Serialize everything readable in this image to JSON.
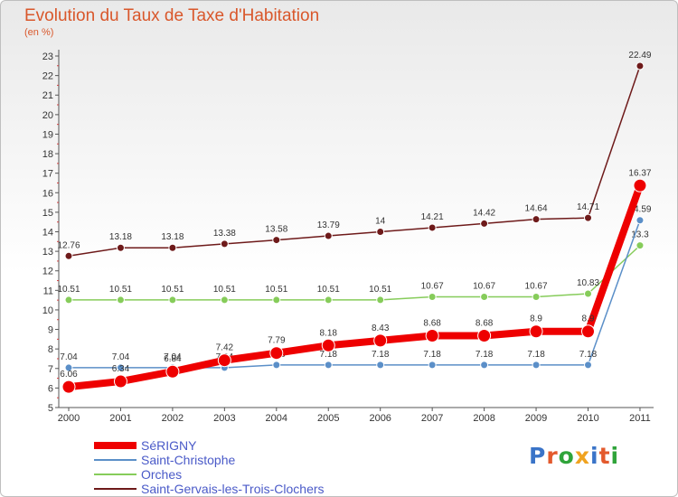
{
  "chart_data": {
    "type": "line",
    "title": "Evolution du Taux de Taxe d'Habitation",
    "subtitle": "(en %)",
    "x": [
      "2000",
      "2001",
      "2002",
      "2003",
      "2004",
      "2005",
      "2006",
      "2007",
      "2008",
      "2009",
      "2010",
      "2011"
    ],
    "ylim": [
      5,
      23
    ],
    "yticks": [
      5,
      6,
      7,
      8,
      9,
      10,
      11,
      12,
      13,
      14,
      15,
      16,
      17,
      18,
      19,
      20,
      21,
      22,
      23
    ],
    "grid": false,
    "legend_position": "bottom-left",
    "series": [
      {
        "name": "Saint-Gervais-les-Trois-Clochers",
        "color": "#6e1a1a",
        "width": 1.5,
        "marker": 4,
        "values": [
          12.76,
          13.18,
          13.18,
          13.38,
          13.58,
          13.79,
          14,
          14.21,
          14.42,
          14.64,
          14.71,
          22.49
        ],
        "labels": [
          "12.76",
          "13.18",
          "13.18",
          "13.38",
          "13.58",
          "13.79",
          "14",
          "14.21",
          "14.42",
          "14.64",
          "14.71",
          "22.49"
        ]
      },
      {
        "name": "Orches",
        "color": "#86cc5a",
        "width": 1.5,
        "marker": 4,
        "values": [
          10.51,
          10.51,
          10.51,
          10.51,
          10.51,
          10.51,
          10.51,
          10.67,
          10.67,
          10.67,
          10.83,
          13.3
        ],
        "labels": [
          "10.51",
          "10.51",
          "10.51",
          "10.51",
          "10.51",
          "10.51",
          "10.51",
          "10.67",
          "10.67",
          "10.67",
          "10.83",
          "13.3"
        ]
      },
      {
        "name": "Saint-Christophe",
        "color": "#5b8fc8",
        "width": 1.5,
        "marker": 4,
        "values": [
          7.04,
          7.04,
          7.04,
          7.04,
          7.18,
          7.18,
          7.18,
          7.18,
          7.18,
          7.18,
          7.18,
          14.59
        ],
        "labels": [
          "7.04",
          "7.04",
          "7.04",
          "7.04",
          "7.18",
          "7.18",
          "7.18",
          "7.18",
          "7.18",
          "7.18",
          "7.18",
          "14.59"
        ]
      },
      {
        "name": "SéRIGNY",
        "color": "#ee0000",
        "width": 8,
        "marker": 7,
        "values": [
          6.06,
          6.34,
          6.84,
          7.42,
          7.79,
          8.18,
          8.43,
          8.68,
          8.68,
          8.9,
          8.9,
          16.37
        ],
        "labels": [
          "6.06",
          "6.34",
          "6.84",
          "7.42",
          "7.79",
          "8.18",
          "8.43",
          "8.68",
          "8.68",
          "8.9",
          "8.9",
          "16.37"
        ]
      }
    ],
    "legend": [
      {
        "name": "SéRIGNY",
        "color": "#ee0000",
        "width": 8
      },
      {
        "name": "Saint-Christophe",
        "color": "#5b8fc8",
        "width": 2
      },
      {
        "name": "Orches",
        "color": "#86cc5a",
        "width": 2
      },
      {
        "name": "Saint-Gervais-les-Trois-Clochers",
        "color": "#6e1a1a",
        "width": 2
      }
    ]
  },
  "logo": {
    "letters": [
      "P",
      "r",
      "o",
      "x",
      "i",
      "t",
      "i"
    ],
    "colors": [
      "#3a74c8",
      "#e35a2d",
      "#2fa43a",
      "#f0a320",
      "#3a74c8",
      "#e35a2d",
      "#2fa43a"
    ]
  }
}
